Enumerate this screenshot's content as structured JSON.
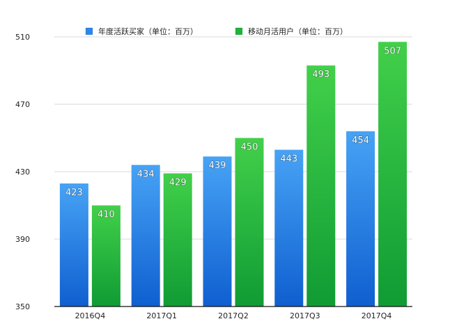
{
  "chart_data": {
    "type": "bar",
    "categories": [
      "2016Q4",
      "2017Q1",
      "2017Q2",
      "2017Q3",
      "2017Q4"
    ],
    "series": [
      {
        "name": "年度活跃买家（单位：百万）",
        "values": [
          423,
          434,
          439,
          443,
          454
        ],
        "color": "#2e86e8"
      },
      {
        "name": "移动月活用户（单位：百万）",
        "values": [
          410,
          429,
          450,
          493,
          507
        ],
        "color": "#1eb33c"
      }
    ],
    "ylim": [
      350,
      510
    ],
    "yticks": [
      350,
      390,
      430,
      470,
      510
    ],
    "grid": true,
    "legend": "top",
    "title": "",
    "xlabel": "",
    "ylabel": ""
  }
}
